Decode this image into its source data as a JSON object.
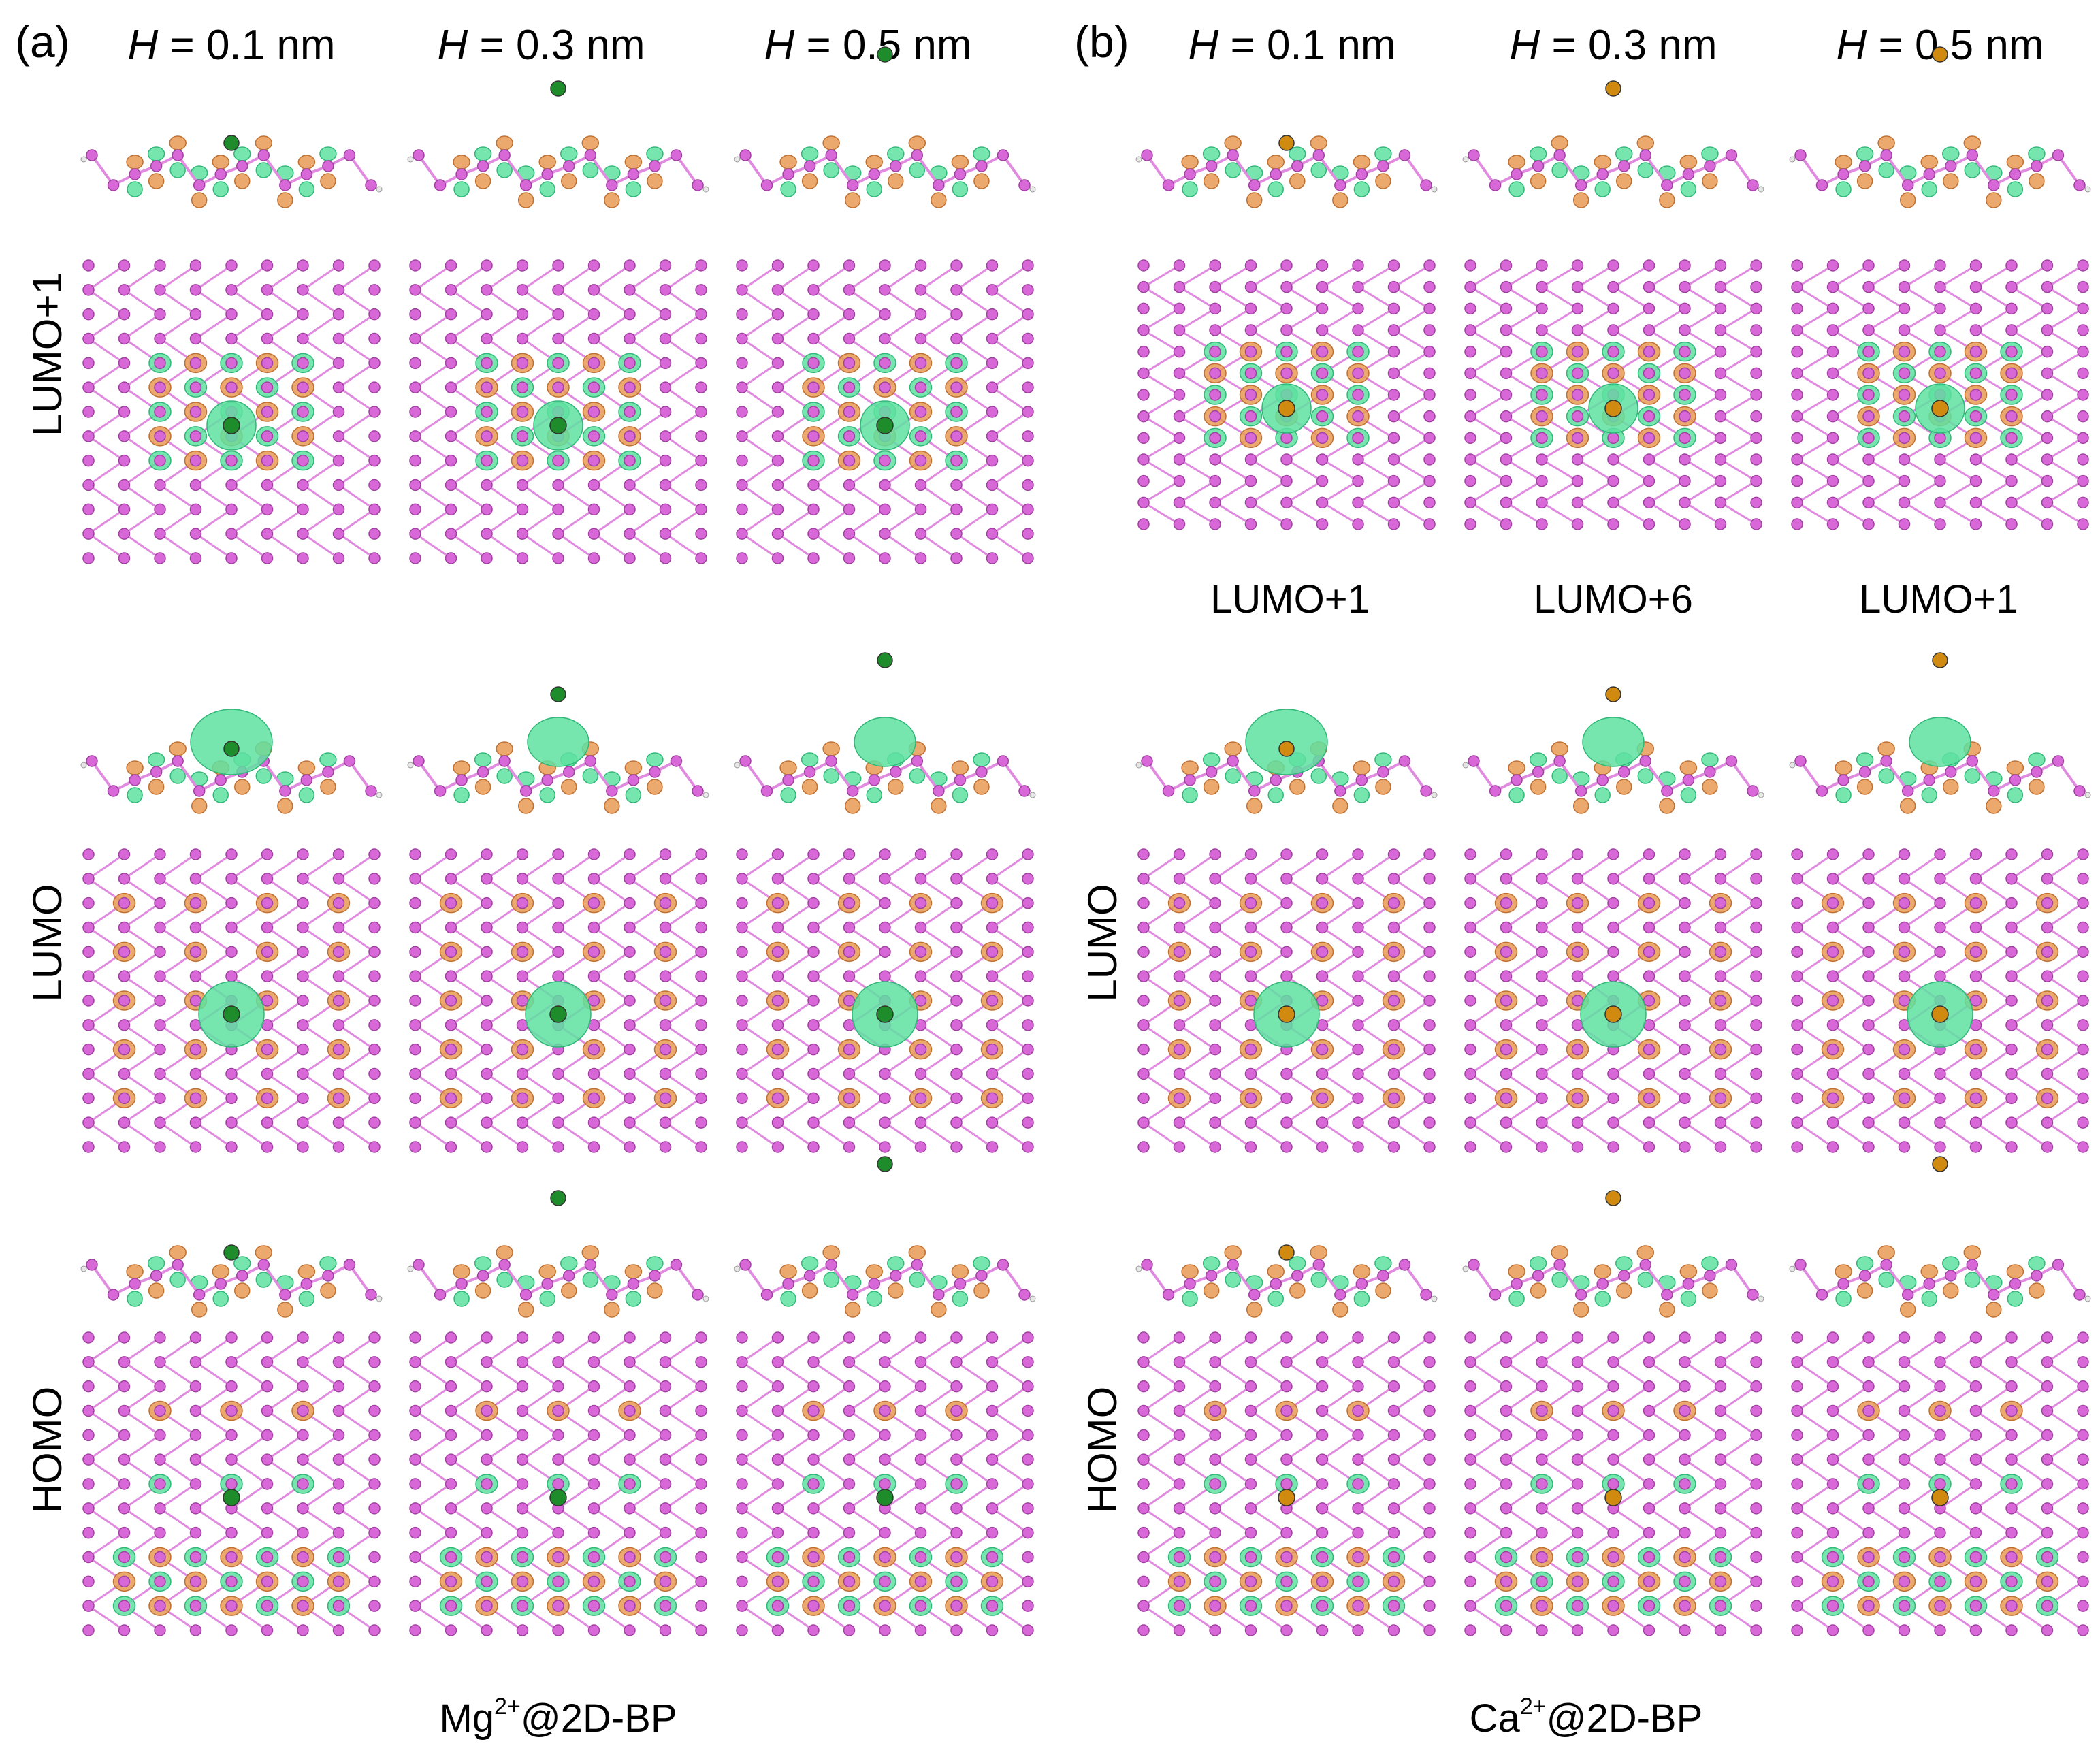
{
  "panels": {
    "a": {
      "label": "(a)",
      "columns": [
        {
          "h": "H",
          "value": " = 0.1 nm"
        },
        {
          "h": "H",
          "value": " = 0.3 nm"
        },
        {
          "h": "H",
          "value": " = 0.5 nm"
        }
      ],
      "system": {
        "prefix": "Mg",
        "charge": "2+",
        "suffix": "@2D-BP"
      },
      "ion_color": "#1e8c2a"
    },
    "b": {
      "label": "(b)",
      "columns": [
        {
          "h": "H",
          "value": " = 0.1 nm"
        },
        {
          "h": "H",
          "value": " = 0.3 nm"
        },
        {
          "h": "H",
          "value": " = 0.5 nm"
        }
      ],
      "system": {
        "prefix": "Ca",
        "charge": "2+",
        "suffix": "@2D-BP"
      },
      "ion_color": "#d08a10",
      "lumo1_labels": [
        "LUMO+1",
        "LUMO+6",
        "LUMO+1"
      ]
    }
  },
  "rows": [
    "LUMO+1",
    "LUMO",
    "HOMO"
  ],
  "colors": {
    "phosphorus": "#d868d8",
    "bond": "#e08ae0",
    "hydrogen": "#e8e8e8",
    "lobe_positive": "#e89a55",
    "lobe_negative": "#5ee0a0"
  }
}
